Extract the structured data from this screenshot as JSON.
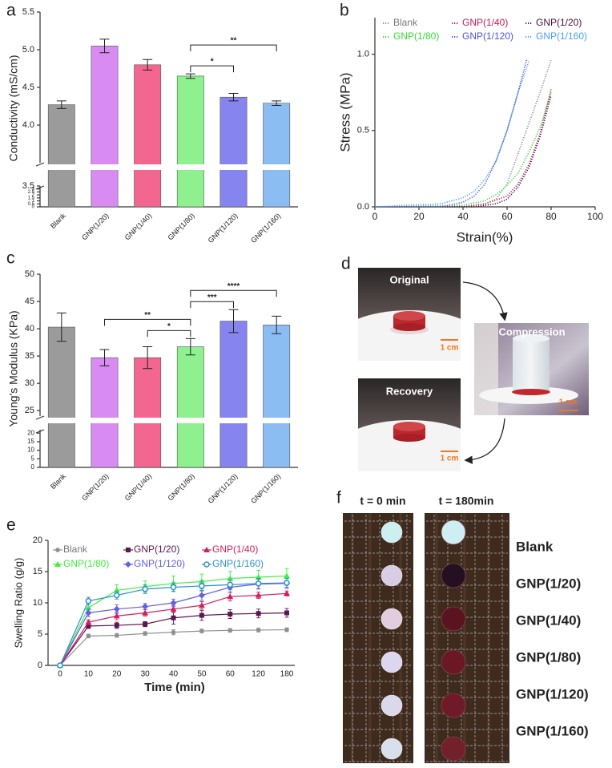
{
  "chart_data": [
    {
      "type": "bar",
      "label": "a",
      "ylabel": "Conductivity (mS/cm)",
      "categories": [
        "Blank",
        "GNP(1/20)",
        "GNP(1/40)",
        "GNP(1/80)",
        "GNP(1/120)",
        "GNP(1/160)"
      ],
      "values": [
        4.27,
        5.05,
        4.8,
        4.65,
        4.37,
        4.29
      ],
      "errors": [
        0.05,
        0.09,
        0.07,
        0.03,
        0.05,
        0.03
      ],
      "colors": [
        "#9b9b9b",
        "#d88cf2",
        "#f2668f",
        "#8ef08e",
        "#8684ef",
        "#8bbcf2"
      ],
      "ylim": [
        0,
        5.5
      ],
      "ybreak": [
        3.5,
        3.5
      ],
      "yticks": [
        0,
        0.5,
        1,
        1.5,
        2,
        2.5,
        3,
        3.5,
        {
          "value": 4,
          "label": "4.0"
        },
        4.5,
        {
          "value": 5,
          "label": "5.0"
        },
        5.5
      ],
      "significance": [
        {
          "between": [
            "GNP(1/80)",
            "GNP(1/120)"
          ],
          "text": "*"
        },
        {
          "between": [
            "GNP(1/80)",
            "GNP(1/160)"
          ],
          "text": "**"
        }
      ]
    },
    {
      "type": "line",
      "label": "b",
      "xlabel": "Strain(%)",
      "ylabel": "Stress (MPa)",
      "line_style": "dotted",
      "xlim": [
        0,
        100
      ],
      "xticks": [
        0,
        20,
        40,
        60,
        80,
        100
      ],
      "ylim": [
        0,
        1.24
      ],
      "yticks": [
        {
          "value": 0,
          "label": "0.0"
        },
        {
          "value": 0.5,
          "label": "0.5"
        },
        {
          "value": 1,
          "label": "1.0"
        }
      ],
      "series": [
        {
          "name": "Blank",
          "color": "#8a8a8a",
          "x": [
            0,
            40,
            50,
            55,
            60,
            65,
            70,
            75,
            80
          ],
          "values": [
            0,
            0,
            0.02,
            0.05,
            0.15,
            0.35,
            0.55,
            0.75,
            0.96
          ]
        },
        {
          "name": "GNP(1/40)",
          "color": "#c8185c",
          "x": [
            0,
            40,
            50,
            60,
            65,
            70,
            75,
            80
          ],
          "values": [
            0,
            0,
            0.02,
            0.07,
            0.15,
            0.28,
            0.48,
            0.77
          ]
        },
        {
          "name": "GNP(1/20)",
          "color": "#4a1040",
          "x": [
            0,
            45,
            55,
            60,
            65,
            70,
            75,
            80
          ],
          "values": [
            0,
            0,
            0.02,
            0.05,
            0.13,
            0.26,
            0.46,
            0.73
          ]
        },
        {
          "name": "GNP(1/80)",
          "color": "#36d836",
          "x": [
            0,
            40,
            50,
            55,
            60,
            65,
            70,
            75,
            80
          ],
          "values": [
            0,
            0.01,
            0.04,
            0.08,
            0.14,
            0.22,
            0.36,
            0.52,
            0.75
          ]
        },
        {
          "name": "GNP(1/120)",
          "color": "#5050e0",
          "x": [
            0,
            30,
            40,
            45,
            50,
            55,
            60,
            65,
            69
          ],
          "values": [
            0,
            0,
            0.03,
            0.07,
            0.15,
            0.3,
            0.5,
            0.75,
            0.97
          ]
        },
        {
          "name": "GNP(1/160)",
          "color": "#4aa0f0",
          "x": [
            0,
            30,
            40,
            45,
            50,
            55,
            60,
            65,
            70
          ],
          "values": [
            0,
            0.02,
            0.06,
            0.1,
            0.18,
            0.3,
            0.5,
            0.75,
            0.96
          ]
        }
      ]
    },
    {
      "type": "bar",
      "label": "c",
      "ylabel": "Young's Modulus (KPa)",
      "categories": [
        "Blank",
        "GNP(1/20)",
        "GNP(1/40)",
        "GNP(1/80)",
        "GNP(1/120)",
        "GNP(1/160)"
      ],
      "values": [
        40.3,
        34.7,
        34.7,
        36.7,
        41.4,
        40.7
      ],
      "errors": [
        2.6,
        1.5,
        2.0,
        1.5,
        2.1,
        1.6
      ],
      "colors": [
        "#9b9b9b",
        "#d88cf2",
        "#f2668f",
        "#8ef08e",
        "#8684ef",
        "#8bbcf2"
      ],
      "ylim": [
        0,
        50
      ],
      "ybreak": [
        22,
        24
      ],
      "yticks": [
        0,
        5,
        10,
        15,
        20,
        25,
        30,
        35,
        40,
        45,
        50
      ],
      "significance": [
        {
          "between": [
            "GNP(1/40)",
            "GNP(1/80)"
          ],
          "text": "*"
        },
        {
          "between": [
            "GNP(1/20)",
            "GNP(1/80)"
          ],
          "text": "**"
        },
        {
          "between": [
            "GNP(1/80)",
            "GNP(1/120)"
          ],
          "text": "***"
        },
        {
          "between": [
            "GNP(1/80)",
            "GNP(1/160)"
          ],
          "text": "****"
        }
      ]
    },
    {
      "type": "line",
      "label": "e",
      "xlabel": "Time (min)",
      "ylabel": "Swelling Ratio (g/g)",
      "categories": [
        0,
        10,
        20,
        30,
        40,
        50,
        60,
        120,
        180
      ],
      "ylim": [
        0,
        20
      ],
      "yticks": [
        0,
        5,
        10,
        15,
        20
      ],
      "series": [
        {
          "name": "Blank",
          "color": "#8f8f8f",
          "marker": "circle",
          "values": [
            0,
            4.7,
            4.8,
            5.1,
            5.3,
            5.5,
            5.6,
            5.65,
            5.7
          ],
          "errors": [
            0,
            0.3,
            0.3,
            0.3,
            0.4,
            0.3,
            0.3,
            0.3,
            0.3
          ]
        },
        {
          "name": "GNP(1/20)",
          "color": "#5a1850",
          "marker": "square",
          "values": [
            0,
            6.3,
            6.4,
            6.6,
            7.6,
            8.0,
            8.2,
            8.3,
            8.4
          ],
          "errors": [
            0,
            0.4,
            0.5,
            0.4,
            1.0,
            0.8,
            0.7,
            0.7,
            0.7
          ]
        },
        {
          "name": "GNP(1/40)",
          "color": "#d02060",
          "marker": "triangle",
          "values": [
            0,
            6.9,
            7.9,
            8.4,
            9.0,
            9.6,
            11.0,
            11.2,
            11.5
          ],
          "errors": [
            0,
            0.4,
            0.6,
            0.5,
            0.6,
            0.6,
            0.7,
            0.5,
            0.4
          ]
        },
        {
          "name": "GNP(1/80)",
          "color": "#40ee40",
          "marker": "triangle",
          "values": [
            0,
            9.2,
            12.0,
            12.6,
            13.1,
            13.4,
            13.9,
            14.1,
            14.3
          ],
          "errors": [
            0,
            0.8,
            0.9,
            0.9,
            1.2,
            1.2,
            1.1,
            1.1,
            1.2
          ]
        },
        {
          "name": "GNP(1/120)",
          "color": "#6060e0",
          "marker": "diamond",
          "values": [
            0,
            8.4,
            9.0,
            9.4,
            10.0,
            11.2,
            12.5,
            13.0,
            13.1
          ],
          "errors": [
            0,
            0.6,
            0.7,
            0.5,
            0.6,
            0.8,
            0.8,
            0.8,
            0.8
          ]
        },
        {
          "name": "GNP(1/160)",
          "color": "#2f8fcf",
          "marker": "open-circle",
          "values": [
            0,
            10.3,
            11.2,
            12.2,
            12.5,
            12.7,
            12.9,
            13.1,
            13.2
          ],
          "errors": [
            0,
            0.6,
            0.6,
            0.7,
            0.7,
            0.8,
            0.8,
            0.8,
            0.7
          ]
        }
      ]
    }
  ],
  "photo_d": {
    "label": "d",
    "captions": [
      "Original",
      "Compression",
      "Recovery"
    ],
    "scale_bar": "1 cm"
  },
  "photo_f": {
    "label": "f",
    "headers": [
      "t = 0 min",
      "t = 180min"
    ],
    "samples": [
      "Blank",
      "GNP(1/20)",
      "GNP(1/40)",
      "GNP(1/80)",
      "GNP(1/120)",
      "GNP(1/160)"
    ]
  }
}
